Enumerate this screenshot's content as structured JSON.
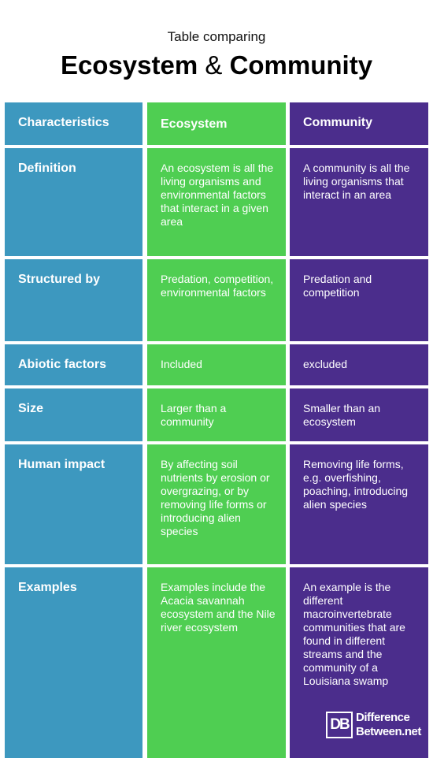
{
  "header": {
    "subtitle": "Table comparing",
    "title_left": "Ecosystem",
    "title_amp": "&",
    "title_right": "Community"
  },
  "table": {
    "columns": [
      "Characteristics",
      "Ecosystem",
      "Community"
    ],
    "rows": [
      {
        "label": "Definition",
        "ecosystem": "An ecosystem is all the living organisms and environmental factors that interact in a given area",
        "community": "A community is all the living organisms that interact in an area"
      },
      {
        "label": "Structured by",
        "ecosystem": "Predation, competition, environmental factors",
        "community": "Predation and competition"
      },
      {
        "label": "Abiotic factors",
        "ecosystem": "Included",
        "community": "excluded"
      },
      {
        "label": "Size",
        "ecosystem": "Larger than a community",
        "community": "Smaller than an ecosystem"
      },
      {
        "label": "Human impact",
        "ecosystem": "By affecting soil nutrients by erosion or overgrazing, or by removing life forms or introducing alien species",
        "community": "Removing life forms, e.g. overfishing, poaching, introducing alien species"
      },
      {
        "label": "Examples",
        "ecosystem": "Examples include the Acacia savannah ecosystem and the Nile river ecosystem",
        "community": "An example is the different macroinvertebrate communities that are found in different streams and the community of a Louisiana swamp"
      }
    ]
  },
  "logo": {
    "mark": "DB",
    "line1": "Difference",
    "line2": "Between.net"
  },
  "colors": {
    "characteristics": "#3d98bf",
    "ecosystem": "#4fce52",
    "community": "#4b2d8c"
  }
}
